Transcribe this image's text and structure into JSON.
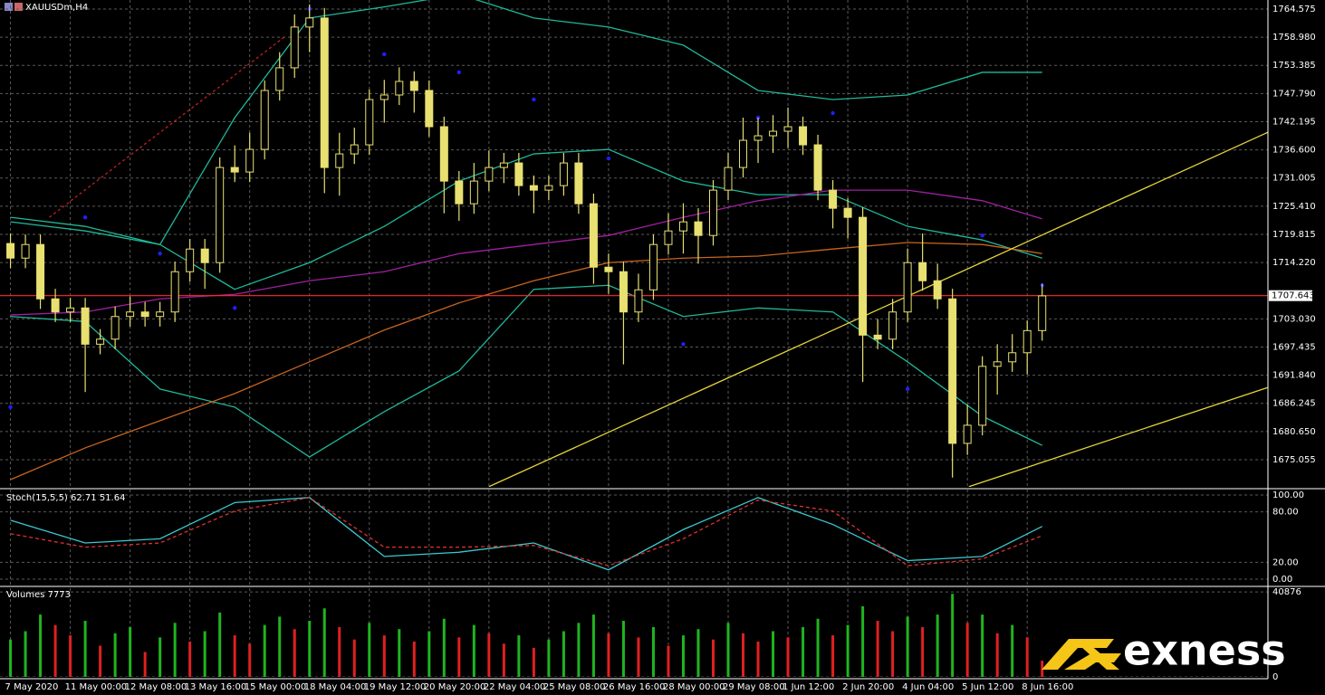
{
  "brand": "exness",
  "chart_data": [
    {
      "type": "candlestick",
      "title": "XAUUSDm,H4",
      "xlim": [
        -0.7,
        84.1
      ],
      "ylim": [
        1669.66,
        1766.37
      ],
      "grid": true,
      "yticks": [
        1764.575,
        {
          "value": 1758.98,
          "label": "1758.980"
        },
        1753.385,
        {
          "value": 1747.79,
          "label": "1747.790"
        },
        1742.195,
        {
          "value": 1736.6,
          "label": "1736.600"
        },
        1731.005,
        {
          "value": 1725.41,
          "label": "1725.410"
        },
        1719.815,
        {
          "value": 1714.22,
          "label": "1714.220"
        },
        {
          "value": 1703.03,
          "label": "1703.030"
        },
        1697.435,
        {
          "value": 1691.84,
          "label": "1691.840"
        },
        1686.245,
        {
          "value": 1680.65,
          "label": "1680.650"
        },
        1675.055
      ],
      "xticks": [
        {
          "value": 0,
          "label": "7 May 2020"
        },
        {
          "value": 4,
          "label": "11 May 00:00"
        },
        {
          "value": 8,
          "label": "12 May 08:00"
        },
        {
          "value": 12,
          "label": "13 May 16:00"
        },
        {
          "value": 16,
          "label": "15 May 00:00"
        },
        {
          "value": 20,
          "label": "18 May 04:00"
        },
        {
          "value": 24,
          "label": "19 May 12:00"
        },
        {
          "value": 28,
          "label": "20 May 20:00"
        },
        {
          "value": 32,
          "label": "22 May 04:00"
        },
        {
          "value": 36,
          "label": "25 May 08:00"
        },
        {
          "value": 40,
          "label": "26 May 16:00"
        },
        {
          "value": 44,
          "label": "28 May 00:00"
        },
        {
          "value": 48,
          "label": "29 May 08:00"
        },
        {
          "value": 52,
          "label": "1 Jun 12:00"
        },
        {
          "value": 56,
          "label": "2 Jun 20:00"
        },
        {
          "value": 60,
          "label": "4 Jun 04:00"
        },
        {
          "value": 64,
          "label": "5 Jun 12:00"
        },
        {
          "value": 68,
          "label": "8 Jun 16:00"
        }
      ],
      "candle_color": "#e8e070",
      "open": [
        1718.0,
        1715.1,
        1717.8,
        1707.0,
        1704.4,
        1705.2,
        1698.0,
        1699.0,
        1703.5,
        1704.4,
        1703.5,
        1704.4,
        1712.4,
        1716.9,
        1714.2,
        1733.1,
        1732.2,
        1736.7,
        1748.4,
        1752.9,
        1761.0,
        1762.8,
        1733.1,
        1735.8,
        1737.6,
        1746.6,
        1747.5,
        1750.2,
        1748.4,
        1741.2,
        1730.4,
        1725.9,
        1730.4,
        1733.1,
        1734.0,
        1729.5,
        1728.6,
        1729.5,
        1734.0,
        1725.9,
        1713.3,
        1712.4,
        1704.4,
        1708.8,
        1717.8,
        1720.5,
        1722.3,
        1719.6,
        1728.6,
        1733.1,
        1738.5,
        1739.4,
        1740.3,
        1741.2,
        1737.6,
        1728.6,
        1725.0,
        1723.2,
        1699.8,
        1699.0,
        1704.4,
        1714.2,
        1710.6,
        1707.0,
        1678.3,
        1681.9,
        1693.6,
        1694.5,
        1696.3,
        1700.7
      ],
      "high": [
        1720.0,
        1719.8,
        1719.8,
        1709.0,
        1707.2,
        1707.2,
        1701.0,
        1705.5,
        1707.5,
        1706.4,
        1706.4,
        1714.4,
        1718.9,
        1718.9,
        1735.1,
        1737.5,
        1740.0,
        1750.4,
        1756.0,
        1763.5,
        1765.5,
        1764.8,
        1740.0,
        1741.0,
        1748.6,
        1750.5,
        1753.0,
        1752.2,
        1750.4,
        1743.2,
        1732.4,
        1734.0,
        1736.5,
        1736.0,
        1736.0,
        1731.5,
        1731.5,
        1736.0,
        1736.0,
        1727.9,
        1716.0,
        1714.4,
        1712.0,
        1719.8,
        1724.0,
        1726.0,
        1725.0,
        1730.6,
        1736.0,
        1743.0,
        1743.0,
        1743.5,
        1745.0,
        1743.2,
        1739.6,
        1730.6,
        1727.0,
        1725.2,
        1703.0,
        1707.0,
        1717.0,
        1720.0,
        1714.0,
        1709.0,
        1686.0,
        1695.6,
        1698.0,
        1700.0,
        1702.7,
        1710.0
      ],
      "low": [
        1713.1,
        1713.1,
        1705.0,
        1702.4,
        1702.4,
        1688.5,
        1696.0,
        1697.0,
        1701.5,
        1701.5,
        1701.5,
        1702.4,
        1710.4,
        1709.0,
        1712.2,
        1730.2,
        1730.2,
        1734.7,
        1746.4,
        1750.9,
        1756.0,
        1728.0,
        1727.5,
        1733.8,
        1735.6,
        1742.0,
        1745.5,
        1744.0,
        1739.2,
        1724.0,
        1722.5,
        1723.9,
        1728.4,
        1730.0,
        1727.5,
        1724.0,
        1726.6,
        1727.5,
        1723.9,
        1710.0,
        1708.0,
        1694.0,
        1702.4,
        1706.8,
        1715.8,
        1716.0,
        1714.0,
        1717.6,
        1726.6,
        1731.1,
        1734.0,
        1736.0,
        1737.0,
        1735.6,
        1726.6,
        1721.0,
        1719.0,
        1690.5,
        1697.0,
        1697.0,
        1702.4,
        1708.6,
        1705.0,
        1671.5,
        1676.0,
        1679.9,
        1688.0,
        1692.5,
        1692.0,
        1698.7
      ],
      "close": [
        1715.1,
        1717.8,
        1707.0,
        1704.4,
        1705.2,
        1698.0,
        1699.0,
        1703.5,
        1704.4,
        1703.5,
        1704.4,
        1712.4,
        1716.9,
        1714.2,
        1733.1,
        1732.2,
        1736.7,
        1748.4,
        1752.9,
        1761.0,
        1762.8,
        1733.1,
        1735.8,
        1737.6,
        1746.6,
        1747.5,
        1750.2,
        1748.4,
        1741.2,
        1730.4,
        1725.9,
        1730.4,
        1733.1,
        1734.0,
        1729.5,
        1728.6,
        1729.5,
        1734.0,
        1725.9,
        1713.3,
        1712.4,
        1704.4,
        1708.8,
        1717.8,
        1720.5,
        1722.3,
        1719.6,
        1728.6,
        1733.1,
        1738.5,
        1739.4,
        1740.3,
        1741.2,
        1737.6,
        1728.6,
        1725.0,
        1723.2,
        1699.8,
        1699.0,
        1704.4,
        1714.2,
        1710.6,
        1707.0,
        1678.3,
        1681.9,
        1693.6,
        1694.5,
        1696.3,
        1700.7,
        1707.6
      ],
      "current_price": 1707.643,
      "current_price_color": "#ff2a2a",
      "lines": [
        {
          "color": "#1fb89a",
          "x": [
            0,
            5,
            10,
            15,
            20,
            25,
            30,
            35,
            40,
            45,
            50,
            55,
            60,
            65,
            69
          ],
          "values": [
            1723.2,
            1721.4,
            1717.8,
            1743.0,
            1762.8,
            1765.0,
            1767.5,
            1762.8,
            1761.0,
            1757.4,
            1748.4,
            1746.6,
            1747.5,
            1752.0,
            1752.0
          ]
        },
        {
          "color": "#1fb89a",
          "x": [
            0,
            5,
            10,
            15,
            20,
            25,
            30,
            35,
            40,
            45,
            50,
            55,
            60,
            65,
            69
          ],
          "values": [
            1722.3,
            1720.5,
            1717.8,
            1708.9,
            1714.2,
            1721.4,
            1730.4,
            1735.8,
            1736.7,
            1730.4,
            1727.7,
            1727.7,
            1721.4,
            1718.7,
            1715.1
          ]
        },
        {
          "color": "#1fb89a",
          "x": [
            0,
            5,
            10,
            15,
            20,
            25,
            30,
            35,
            40,
            45,
            50,
            55,
            60,
            65,
            69
          ],
          "values": [
            1703.5,
            1702.5,
            1689.1,
            1685.5,
            1675.6,
            1684.6,
            1692.7,
            1708.9,
            1709.7,
            1703.5,
            1705.2,
            1704.4,
            1694.5,
            1683.7,
            1677.9
          ]
        },
        {
          "color": "#a020a0",
          "x": [
            0,
            5,
            10,
            15,
            20,
            25,
            30,
            35,
            40,
            45,
            50,
            55,
            60,
            65,
            69
          ],
          "values": [
            1703.8,
            1704.4,
            1707.0,
            1707.9,
            1710.6,
            1712.4,
            1716.0,
            1717.8,
            1719.6,
            1723.2,
            1726.5,
            1728.6,
            1728.6,
            1726.5,
            1722.9
          ]
        },
        {
          "color": "#c8641e",
          "x": [
            0,
            5,
            10,
            15,
            20,
            25,
            30,
            35,
            40,
            45,
            50,
            55,
            60,
            65,
            69
          ],
          "values": [
            1671.1,
            1677.4,
            1682.8,
            1688.2,
            1694.5,
            1700.8,
            1706.2,
            1710.6,
            1714.2,
            1715.1,
            1715.5,
            1716.9,
            1718.2,
            1717.8,
            1716.0
          ]
        }
      ],
      "dots": {
        "color": "#2020ff",
        "x": [
          0,
          5,
          10,
          15,
          20,
          25,
          30,
          35,
          40,
          45,
          50,
          55,
          60,
          65,
          69
        ],
        "values": [
          1685.5,
          1723.2,
          1716.0,
          1705.2,
          1764.6,
          1755.6,
          1752.0,
          1746.6,
          1734.9,
          1698.0,
          1743.0,
          1743.9,
          1689.1,
          1719.6,
          1709.7
        ]
      },
      "trendlines": [
        {
          "color": "#e6d43c",
          "x": [
            32,
            84.1
          ],
          "values": [
            1669.7,
            1740.1
          ]
        },
        {
          "color": "#e6d43c",
          "x": [
            64.1,
            84.1
          ],
          "values": [
            1669.7,
            1689.4
          ]
        },
        {
          "color": "#c02020",
          "dash": true,
          "x": [
            2.6,
            18.4
          ],
          "values": [
            1723.2,
            1759.2
          ]
        }
      ]
    },
    {
      "type": "line",
      "title": "Stoch(15,5,5) 62.71 51.64",
      "xlim": [
        -0.7,
        84.1
      ],
      "ylim": [
        -6.5,
        106.5
      ],
      "grid": true,
      "yticks": [
        {
          "value": 100,
          "label": "100.00"
        },
        {
          "value": 80,
          "label": "80.00"
        },
        {
          "value": 20,
          "label": "20.00"
        },
        {
          "value": 0,
          "label": "0.00"
        }
      ],
      "x": [
        0,
        5,
        10,
        15,
        20,
        25,
        30,
        35,
        40,
        45,
        50,
        55,
        60,
        65,
        69
      ],
      "series": [
        {
          "color": "#3cc8d0",
          "values": [
            70,
            43,
            48,
            91,
            97,
            27,
            32,
            43,
            11,
            59,
            97,
            65,
            22,
            27,
            62.71
          ]
        },
        {
          "color": "#e03030",
          "dash": true,
          "values": [
            54,
            38,
            43,
            81,
            97,
            38,
            38,
            40,
            16,
            48,
            94,
            81,
            16,
            24,
            51.64
          ]
        }
      ]
    },
    {
      "type": "bar",
      "title": "Volumes 7773",
      "xlim": [
        -0.7,
        84.1
      ],
      "ylim": [
        0,
        42700
      ],
      "grid": true,
      "yticks": [
        40876,
        0
      ],
      "up_color": "#1fb41f",
      "down_color": "#e02020",
      "values": [
        18000,
        22000,
        30000,
        25000,
        20000,
        27000,
        15000,
        21000,
        24000,
        12000,
        19000,
        26000,
        17000,
        22000,
        31000,
        20000,
        16000,
        25000,
        29000,
        23000,
        27000,
        33000,
        24000,
        18000,
        26000,
        20000,
        23000,
        17000,
        22000,
        28000,
        19000,
        25000,
        21000,
        16000,
        20000,
        14000,
        18000,
        22000,
        26000,
        30000,
        21000,
        27000,
        19000,
        24000,
        15000,
        20000,
        23000,
        18000,
        26000,
        21000,
        17000,
        22000,
        19000,
        24000,
        28000,
        20000,
        25000,
        34000,
        27000,
        22000,
        29000,
        24000,
        30000,
        40000,
        26000,
        30000,
        21000,
        25000,
        19000,
        7773
      ]
    }
  ]
}
